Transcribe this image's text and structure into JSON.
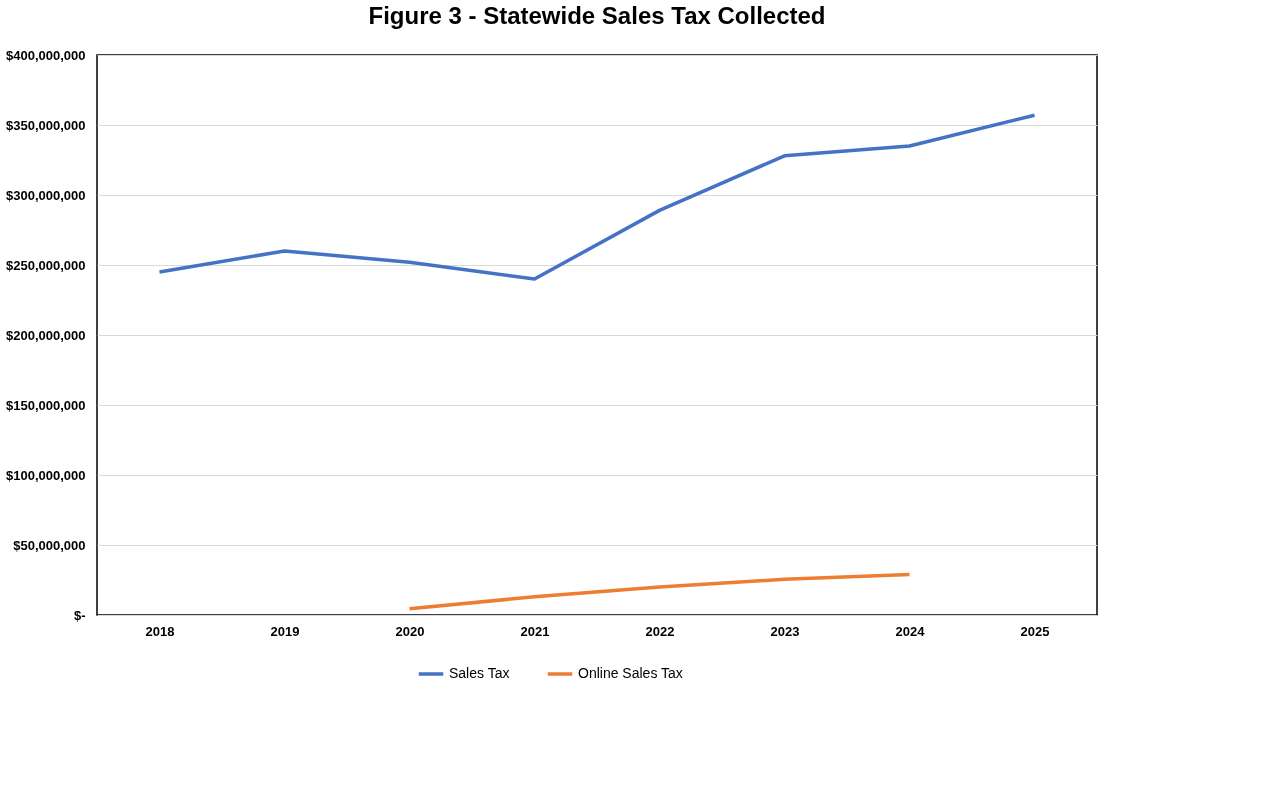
{
  "chart_data": {
    "type": "line",
    "title": "Figure 3 - Statewide Sales Tax Collected",
    "categories": [
      "2018",
      "2019",
      "2020",
      "2021",
      "2022",
      "2023",
      "2024",
      "2025"
    ],
    "series": [
      {
        "name": "Sales Tax",
        "color": "#4472c4",
        "values": [
          245000000,
          260000000,
          252000000,
          240000000,
          289000000,
          328000000,
          335000000,
          357000000
        ]
      },
      {
        "name": "Online Sales Tax",
        "color": "#ed7d31",
        "values": [
          null,
          null,
          4500000,
          13000000,
          20000000,
          25500000,
          29000000,
          null
        ]
      }
    ],
    "ylim": [
      0,
      400000000
    ],
    "yticks": [
      {
        "value": 0,
        "label": "$-"
      },
      {
        "value": 50000000,
        "label": "$50,000,000"
      },
      {
        "value": 100000000,
        "label": "$100,000,000"
      },
      {
        "value": 150000000,
        "label": "$150,000,000"
      },
      {
        "value": 200000000,
        "label": "$200,000,000"
      },
      {
        "value": 250000000,
        "label": "$250,000,000"
      },
      {
        "value": 300000000,
        "label": "$300,000,000"
      },
      {
        "value": 350000000,
        "label": "$350,000,000"
      },
      {
        "value": 400000000,
        "label": "$400,000,000"
      }
    ],
    "grid": "y",
    "legend": "bottom",
    "marker": "none",
    "line_style": "solid"
  }
}
